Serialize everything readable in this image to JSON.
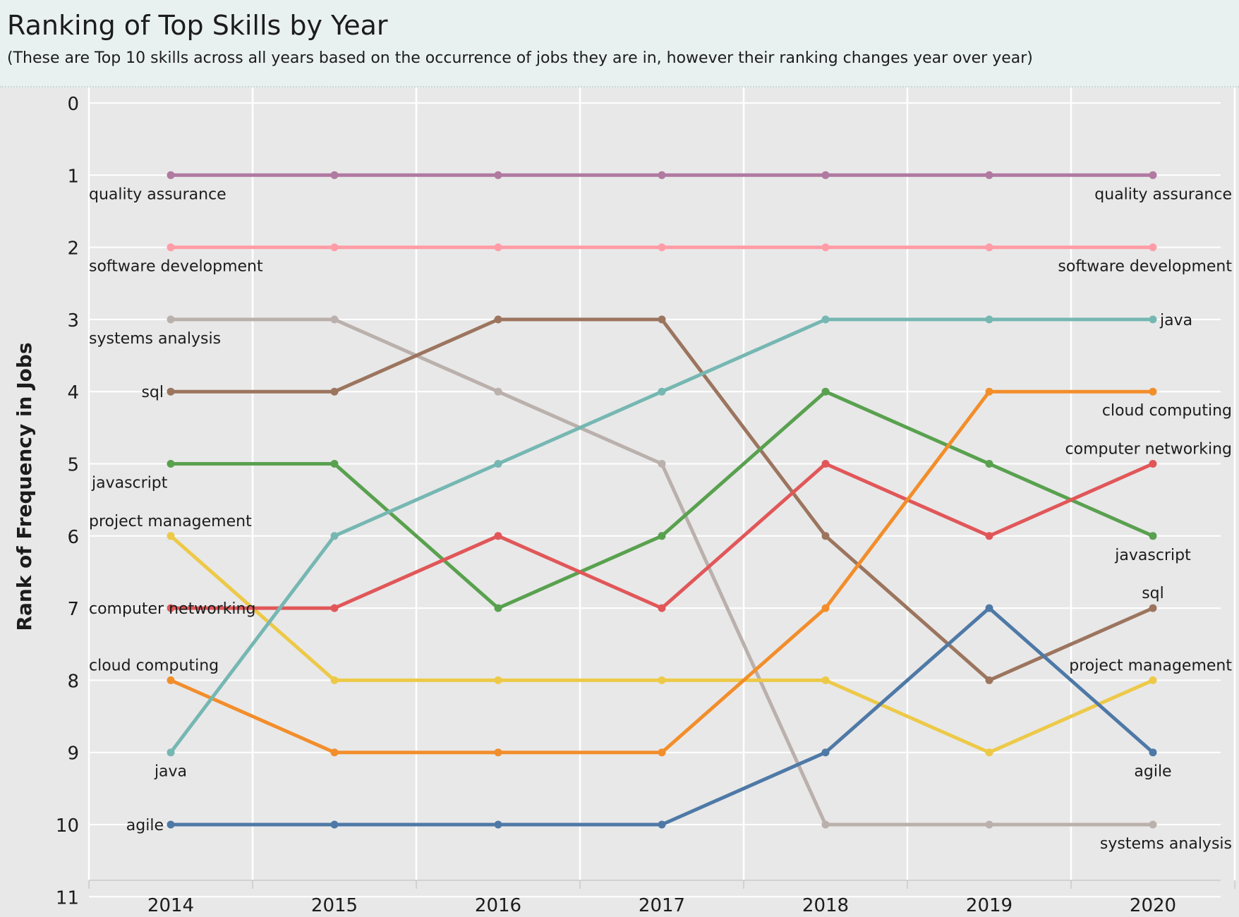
{
  "chart_data": {
    "type": "line",
    "title": "Ranking of Top Skills by Year",
    "subtitle": "(These are Top 10 skills across all years based on the occurrence of jobs they are in, however their ranking changes year over year)",
    "xlabel": "",
    "ylabel": "Rank of Frequency in Jobs",
    "x": [
      "2014",
      "2015",
      "2016",
      "2017",
      "2018",
      "2019",
      "2020"
    ],
    "y_ticks": [
      "0",
      "1",
      "2",
      "3",
      "4",
      "5",
      "6",
      "7",
      "8",
      "9",
      "10",
      "11"
    ],
    "ylim": [
      0,
      11
    ],
    "y_reversed": true,
    "grid": true,
    "legend": "inline labels at both ends of each line",
    "series": [
      {
        "name": "quality assurance",
        "color": "#b07aa1",
        "values": [
          1,
          1,
          1,
          1,
          1,
          1,
          1
        ]
      },
      {
        "name": "software development",
        "color": "#ff9da7",
        "values": [
          2,
          2,
          2,
          2,
          2,
          2,
          2
        ]
      },
      {
        "name": "systems analysis",
        "color": "#bab0ac",
        "values": [
          3,
          3,
          4,
          5,
          10,
          10,
          10
        ]
      },
      {
        "name": "sql",
        "color": "#9c755f",
        "values": [
          4,
          4,
          3,
          3,
          6,
          8,
          7
        ]
      },
      {
        "name": "javascript",
        "color": "#59a14f",
        "values": [
          5,
          5,
          7,
          6,
          4,
          5,
          6
        ]
      },
      {
        "name": "project management",
        "color": "#edc948",
        "values": [
          6,
          8,
          8,
          8,
          8,
          9,
          8
        ]
      },
      {
        "name": "computer networking",
        "color": "#e15759",
        "values": [
          7,
          7,
          6,
          7,
          5,
          6,
          5
        ]
      },
      {
        "name": "cloud computing",
        "color": "#f28e2b",
        "values": [
          8,
          9,
          9,
          9,
          7,
          4,
          4
        ]
      },
      {
        "name": "java",
        "color": "#76b7b2",
        "values": [
          9,
          6,
          5,
          4,
          3,
          3,
          3
        ]
      },
      {
        "name": "agile",
        "color": "#4e79a7",
        "values": [
          10,
          10,
          10,
          10,
          9,
          7,
          9
        ]
      }
    ]
  }
}
